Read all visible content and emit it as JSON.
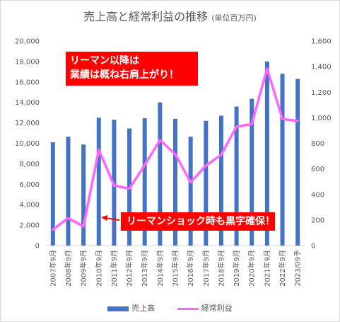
{
  "chart_data": {
    "type": "bar",
    "title": "売上高と経常利益の推移",
    "subtitle": "(単位百万円)",
    "categories": [
      "2007年9月",
      "2008年9月",
      "2009年9月",
      "2010年9月",
      "2011年9月",
      "2012年9月",
      "2013年9月",
      "2014年9月",
      "2015年9月",
      "2016年9月",
      "2017年9月",
      "2018年9月",
      "2019年9月",
      "2020年9月",
      "2021年9月",
      "2022年9月",
      "2023/09予"
    ],
    "series": [
      {
        "name": "売上高",
        "type": "bar",
        "axis": "left",
        "color": "#4472c4",
        "values": [
          10100,
          10650,
          9880,
          12500,
          12300,
          11450,
          12450,
          14000,
          12400,
          10650,
          12200,
          12700,
          13600,
          14350,
          18000,
          16800,
          16300
        ]
      },
      {
        "name": "経常利益",
        "type": "line",
        "axis": "right",
        "color": "#ff66ff",
        "values": [
          125,
          215,
          150,
          750,
          470,
          445,
          630,
          825,
          715,
          495,
          625,
          710,
          930,
          950,
          1385,
          990,
          975
        ]
      }
    ],
    "y_left": {
      "min": 0,
      "max": 20000,
      "ticks": [
        "0",
        "2,000",
        "4,000",
        "6,000",
        "8,000",
        "10,000",
        "12,000",
        "14,000",
        "16,000",
        "18,000",
        "20,000"
      ]
    },
    "y_right": {
      "min": 0,
      "max": 1600,
      "ticks": [
        "0",
        "200",
        "400",
        "600",
        "800",
        "1,000",
        "1,200",
        "1,400",
        "1,600"
      ]
    },
    "grid": false,
    "legend_position": "bottom",
    "annotations": [
      {
        "lines": [
          "リーマン以降は",
          "業績は概ね右肩上がり！"
        ],
        "color": "#ff0000"
      },
      {
        "text": "リーマンショック時も黒字確保！",
        "color": "#ff0000"
      }
    ]
  }
}
